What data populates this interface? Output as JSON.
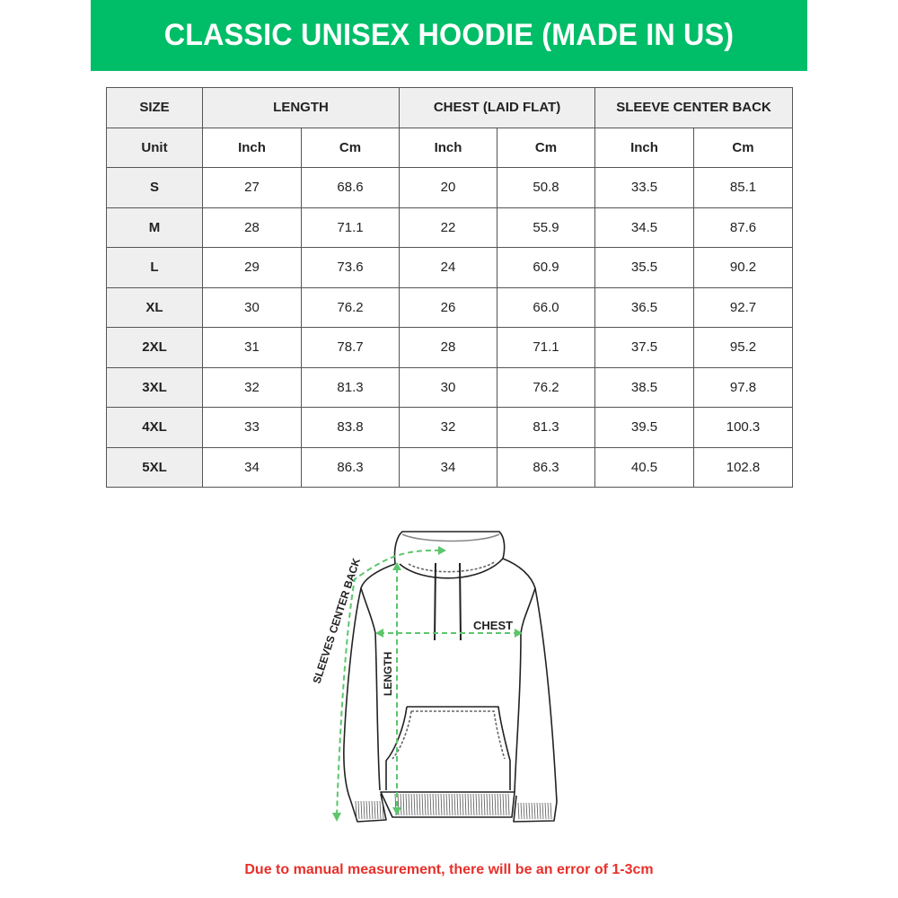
{
  "title": "CLASSIC UNISEX HOODIE (MADE IN US)",
  "table": {
    "group_headers": [
      "SIZE",
      "LENGTH",
      "CHEST (LAID FLAT)",
      "SLEEVE CENTER BACK"
    ],
    "unit_row": [
      "Unit",
      "Inch",
      "Cm",
      "Inch",
      "Cm",
      "Inch",
      "Cm"
    ],
    "rows": [
      [
        "S",
        "27",
        "68.6",
        "20",
        "50.8",
        "33.5",
        "85.1"
      ],
      [
        "M",
        "28",
        "71.1",
        "22",
        "55.9",
        "34.5",
        "87.6"
      ],
      [
        "L",
        "29",
        "73.6",
        "24",
        "60.9",
        "35.5",
        "90.2"
      ],
      [
        "XL",
        "30",
        "76.2",
        "26",
        "66.0",
        "36.5",
        "92.7"
      ],
      [
        "2XL",
        "31",
        "78.7",
        "28",
        "71.1",
        "37.5",
        "95.2"
      ],
      [
        "3XL",
        "32",
        "81.3",
        "30",
        "76.2",
        "38.5",
        "97.8"
      ],
      [
        "4XL",
        "33",
        "83.8",
        "32",
        "81.3",
        "39.5",
        "100.3"
      ],
      [
        "5XL",
        "34",
        "86.3",
        "34",
        "86.3",
        "40.5",
        "102.8"
      ]
    ]
  },
  "diagram": {
    "labels": {
      "chest": "CHEST",
      "length": "LENGTH",
      "sleeve": "SLEEVES CENTER BACK"
    },
    "arrow_color": "#5cc66b"
  },
  "note": "Due to manual measurement, there will be an error of 1-3cm",
  "colors": {
    "banner": "#00bd68",
    "note": "#e8302a",
    "header_cell": "#efefef"
  }
}
